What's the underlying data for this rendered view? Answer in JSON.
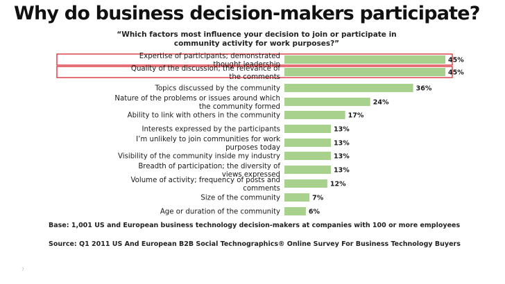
{
  "slide": {
    "title": "Why do business decision-makers participate?",
    "page_number": "7"
  },
  "chart_data": {
    "type": "bar",
    "orientation": "horizontal",
    "title": "“Which factors most influence your decision to join or participate in community activity for work purposes?”",
    "categories": [
      "Expertise of participants; demonstrated thought leadership",
      "Quality of the discussion; the relevance of the comments",
      "Topics discussed by the community",
      "Nature of the problems or issues around which the community formed",
      "Ability to link with others in the community",
      "Interests expressed by the participants",
      "I’m unlikely to join communities for work purposes today",
      "Visibility of the community inside my industry",
      "Breadth of participation; the diversity of views expressed",
      "Volume of activity; frequency of posts and comments",
      "Size of the community",
      "Age or duration of the community"
    ],
    "values": [
      45,
      45,
      36,
      24,
      17,
      13,
      13,
      13,
      13,
      12,
      7,
      6
    ],
    "value_labels": [
      "45%",
      "45%",
      "36%",
      "24%",
      "17%",
      "13%",
      "13%",
      "13%",
      "13%",
      "12%",
      "7%",
      "6%"
    ],
    "xlim": [
      0,
      45
    ],
    "highlighted": [
      0,
      1
    ],
    "bar_color": "#a9d18e",
    "highlight_color": "#d9262e",
    "grid": false,
    "legend": "none"
  },
  "notes": {
    "base": "Base: 1,001 US and European business technology decision-makers at companies with 100 or more employees",
    "source": "Source: Q1 2011 US And European B2B Social Technographics® Online Survey For Business Technology Buyers"
  }
}
